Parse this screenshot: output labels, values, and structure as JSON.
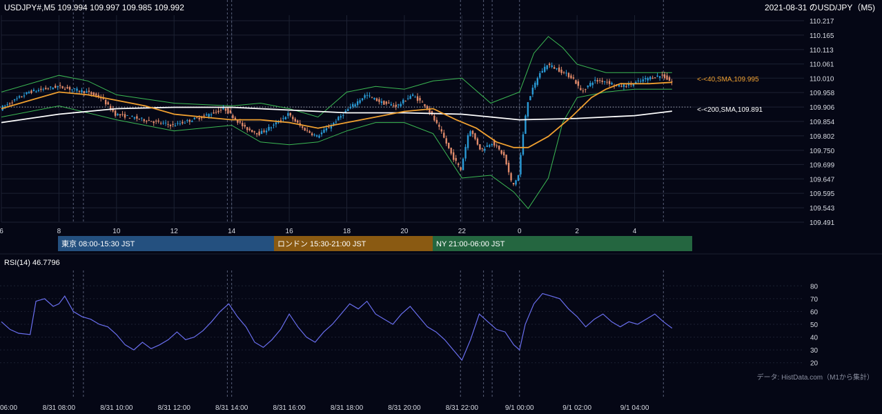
{
  "header": {
    "ohlc_text": "USDJPY#,M5 109.994 109.997 109.985 109.992",
    "title": "2021-08-31 のUSD/JPY（M5)"
  },
  "colors": {
    "background": "#050715",
    "bull": "#2a9bd6",
    "bear": "#e08a6a",
    "sma40": "#f0a030",
    "sma200": "#ffffff",
    "bollinger": "#3cba54",
    "rsi": "#6a6ff0",
    "grid": "#1d2233",
    "tokyo": "#24507f",
    "london": "#8a5a12",
    "ny": "#246640"
  },
  "sessions": [
    {
      "label": "東京 08:00-15:30 JST",
      "key": "tokyo"
    },
    {
      "label": "ロンドン 15:30-21:00 JST",
      "key": "london"
    },
    {
      "label": "NY 21:00-06:00 JST",
      "key": "ny"
    }
  ],
  "indicators": {
    "sma40_label": "<-<40,SMA,109.995",
    "sma200_label": "<-<200,SMA,109.891",
    "rsi_label": "RSI(14) 46.7796"
  },
  "footer": {
    "source": "データ: HistData.com（M1から集計）"
  },
  "chart_data": [
    {
      "type": "candlestick",
      "title": "2021-08-31 のUSD/JPY（M5)",
      "symbol": "USDJPY#,M5",
      "last_ohlc": {
        "open": 109.994,
        "high": 109.997,
        "low": 109.985,
        "close": 109.992
      },
      "y_ticks": [
        "110.217",
        "110.165",
        "110.113",
        "110.061",
        "110.010",
        "109.958",
        "109.906",
        "109.854",
        "109.802",
        "109.750",
        "109.699",
        "109.647",
        "109.595",
        "109.543",
        "109.491"
      ],
      "ylim": [
        109.491,
        110.217
      ],
      "x_ticks": [
        "6",
        "8",
        "10",
        "12",
        "14",
        "16",
        "18",
        "20",
        "22",
        "0",
        "2",
        "4"
      ],
      "x_tick_hours": [
        6,
        8,
        10,
        12,
        14,
        16,
        18,
        20,
        22,
        24,
        26,
        28
      ],
      "xlim_hours": [
        6,
        30
      ],
      "reference_line": 109.906,
      "sma40_last": 109.995,
      "sma200_last": 109.891,
      "price_path": [
        [
          6.0,
          109.9
        ],
        [
          7.0,
          109.96
        ],
        [
          8.0,
          109.98
        ],
        [
          8.5,
          109.97
        ],
        [
          9.0,
          109.96
        ],
        [
          9.5,
          109.94
        ],
        [
          10.0,
          109.88
        ],
        [
          11.0,
          109.86
        ],
        [
          12.0,
          109.84
        ],
        [
          13.0,
          109.87
        ],
        [
          13.8,
          109.9
        ],
        [
          14.5,
          109.83
        ],
        [
          15.0,
          109.81
        ],
        [
          15.5,
          109.84
        ],
        [
          16.0,
          109.88
        ],
        [
          16.5,
          109.83
        ],
        [
          17.0,
          109.8
        ],
        [
          17.5,
          109.84
        ],
        [
          18.0,
          109.89
        ],
        [
          18.7,
          109.95
        ],
        [
          19.3,
          109.92
        ],
        [
          19.8,
          109.91
        ],
        [
          20.3,
          109.95
        ],
        [
          20.8,
          109.91
        ],
        [
          21.3,
          109.82
        ],
        [
          21.7,
          109.73
        ],
        [
          22.0,
          109.68
        ],
        [
          22.3,
          109.83
        ],
        [
          22.7,
          109.75
        ],
        [
          23.1,
          109.78
        ],
        [
          23.5,
          109.73
        ],
        [
          23.8,
          109.62
        ],
        [
          24.0,
          109.66
        ],
        [
          24.3,
          109.92
        ],
        [
          24.7,
          110.02
        ],
        [
          25.0,
          110.06
        ],
        [
          25.4,
          110.04
        ],
        [
          25.9,
          110.01
        ],
        [
          26.2,
          109.96
        ],
        [
          26.6,
          110.0
        ],
        [
          27.0,
          110.0
        ],
        [
          27.5,
          109.98
        ],
        [
          28.0,
          109.99
        ],
        [
          28.5,
          110.01
        ],
        [
          29.0,
          110.02
        ],
        [
          29.4,
          109.99
        ]
      ],
      "sma40_path": [
        [
          6.0,
          109.9
        ],
        [
          7.0,
          109.93
        ],
        [
          8.0,
          109.96
        ],
        [
          9.0,
          109.95
        ],
        [
          10.0,
          109.93
        ],
        [
          11.0,
          109.91
        ],
        [
          12.0,
          109.88
        ],
        [
          13.0,
          109.87
        ],
        [
          14.0,
          109.86
        ],
        [
          15.0,
          109.86
        ],
        [
          16.0,
          109.85
        ],
        [
          17.0,
          109.83
        ],
        [
          18.0,
          109.85
        ],
        [
          19.0,
          109.87
        ],
        [
          20.0,
          109.89
        ],
        [
          21.0,
          109.9
        ],
        [
          21.8,
          109.86
        ],
        [
          22.5,
          109.83
        ],
        [
          23.2,
          109.78
        ],
        [
          23.8,
          109.76
        ],
        [
          24.3,
          109.76
        ],
        [
          25.0,
          109.8
        ],
        [
          25.8,
          109.87
        ],
        [
          26.5,
          109.94
        ],
        [
          27.0,
          109.97
        ],
        [
          27.5,
          109.99
        ],
        [
          28.5,
          109.99
        ],
        [
          29.3,
          109.995
        ]
      ],
      "sma200_path": [
        [
          6.0,
          109.85
        ],
        [
          8.0,
          109.88
        ],
        [
          10.0,
          109.9
        ],
        [
          12.0,
          109.905
        ],
        [
          14.0,
          109.905
        ],
        [
          16.0,
          109.895
        ],
        [
          18.0,
          109.885
        ],
        [
          20.0,
          109.885
        ],
        [
          22.0,
          109.88
        ],
        [
          24.0,
          109.86
        ],
        [
          26.0,
          109.865
        ],
        [
          28.0,
          109.875
        ],
        [
          29.3,
          109.891
        ]
      ],
      "bollinger_upper": [
        [
          6.0,
          109.96
        ],
        [
          8.0,
          110.02
        ],
        [
          9.0,
          110.0
        ],
        [
          10.0,
          109.95
        ],
        [
          12.0,
          109.92
        ],
        [
          14.0,
          109.91
        ],
        [
          15.0,
          109.92
        ],
        [
          16.0,
          109.9
        ],
        [
          17.0,
          109.87
        ],
        [
          18.0,
          109.96
        ],
        [
          19.0,
          109.98
        ],
        [
          20.0,
          109.97
        ],
        [
          21.0,
          110.0
        ],
        [
          22.0,
          110.01
        ],
        [
          23.0,
          109.92
        ],
        [
          24.0,
          109.96
        ],
        [
          24.5,
          110.1
        ],
        [
          25.0,
          110.16
        ],
        [
          25.5,
          110.12
        ],
        [
          26.0,
          110.06
        ],
        [
          27.0,
          110.03
        ],
        [
          28.0,
          110.03
        ],
        [
          29.3,
          110.03
        ]
      ],
      "bollinger_lower": [
        [
          6.0,
          109.87
        ],
        [
          8.0,
          109.91
        ],
        [
          10.0,
          109.86
        ],
        [
          12.0,
          109.82
        ],
        [
          14.0,
          109.84
        ],
        [
          15.0,
          109.78
        ],
        [
          16.0,
          109.77
        ],
        [
          17.0,
          109.78
        ],
        [
          18.0,
          109.82
        ],
        [
          19.0,
          109.85
        ],
        [
          20.0,
          109.85
        ],
        [
          21.0,
          109.81
        ],
        [
          22.0,
          109.65
        ],
        [
          23.0,
          109.66
        ],
        [
          23.8,
          109.6
        ],
        [
          24.3,
          109.54
        ],
        [
          25.0,
          109.65
        ],
        [
          25.5,
          109.85
        ],
        [
          26.0,
          109.94
        ],
        [
          27.0,
          109.96
        ],
        [
          28.0,
          109.97
        ],
        [
          29.3,
          109.97
        ]
      ]
    },
    {
      "type": "line",
      "title": "RSI(14) 46.7796",
      "y_ticks": [
        "80",
        "70",
        "60",
        "50",
        "40",
        "30",
        "20"
      ],
      "ylim": [
        15,
        85
      ],
      "x_ticks": [
        "06:00",
        "8/31 08:00",
        "8/31 10:00",
        "8/31 12:00",
        "8/31 14:00",
        "8/31 16:00",
        "8/31 18:00",
        "8/31 20:00",
        "8/31 22:00",
        "9/1 00:00",
        "9/1 02:00",
        "9/1 04:00"
      ],
      "last_value": 46.7796,
      "series": [
        {
          "values": [
            [
              6.0,
              52
            ],
            [
              6.3,
              46
            ],
            [
              6.6,
              43
            ],
            [
              7.0,
              42
            ],
            [
              7.2,
              68
            ],
            [
              7.5,
              70
            ],
            [
              7.8,
              64
            ],
            [
              8.0,
              66
            ],
            [
              8.2,
              72
            ],
            [
              8.5,
              60
            ],
            [
              8.8,
              56
            ],
            [
              9.1,
              54
            ],
            [
              9.4,
              50
            ],
            [
              9.7,
              48
            ],
            [
              10.0,
              42
            ],
            [
              10.3,
              34
            ],
            [
              10.6,
              30
            ],
            [
              10.9,
              36
            ],
            [
              11.2,
              31
            ],
            [
              11.5,
              34
            ],
            [
              11.8,
              38
            ],
            [
              12.1,
              44
            ],
            [
              12.4,
              38
            ],
            [
              12.7,
              40
            ],
            [
              13.0,
              45
            ],
            [
              13.3,
              52
            ],
            [
              13.6,
              60
            ],
            [
              13.9,
              66
            ],
            [
              14.2,
              56
            ],
            [
              14.5,
              48
            ],
            [
              14.8,
              36
            ],
            [
              15.1,
              32
            ],
            [
              15.4,
              38
            ],
            [
              15.7,
              46
            ],
            [
              16.0,
              58
            ],
            [
              16.3,
              48
            ],
            [
              16.6,
              40
            ],
            [
              16.9,
              36
            ],
            [
              17.2,
              44
            ],
            [
              17.5,
              50
            ],
            [
              17.8,
              58
            ],
            [
              18.1,
              66
            ],
            [
              18.4,
              62
            ],
            [
              18.7,
              68
            ],
            [
              19.0,
              58
            ],
            [
              19.3,
              54
            ],
            [
              19.6,
              50
            ],
            [
              19.9,
              58
            ],
            [
              20.2,
              64
            ],
            [
              20.5,
              56
            ],
            [
              20.8,
              48
            ],
            [
              21.1,
              44
            ],
            [
              21.4,
              38
            ],
            [
              21.7,
              30
            ],
            [
              22.0,
              22
            ],
            [
              22.3,
              38
            ],
            [
              22.6,
              58
            ],
            [
              22.9,
              52
            ],
            [
              23.2,
              46
            ],
            [
              23.5,
              44
            ],
            [
              23.8,
              34
            ],
            [
              24.0,
              30
            ],
            [
              24.2,
              50
            ],
            [
              24.5,
              66
            ],
            [
              24.8,
              74
            ],
            [
              25.1,
              72
            ],
            [
              25.4,
              70
            ],
            [
              25.7,
              62
            ],
            [
              26.0,
              56
            ],
            [
              26.3,
              48
            ],
            [
              26.6,
              54
            ],
            [
              26.9,
              58
            ],
            [
              27.2,
              52
            ],
            [
              27.5,
              48
            ],
            [
              27.8,
              52
            ],
            [
              28.1,
              50
            ],
            [
              28.4,
              54
            ],
            [
              28.7,
              58
            ],
            [
              29.0,
              52
            ],
            [
              29.3,
              47
            ]
          ]
        }
      ]
    }
  ]
}
